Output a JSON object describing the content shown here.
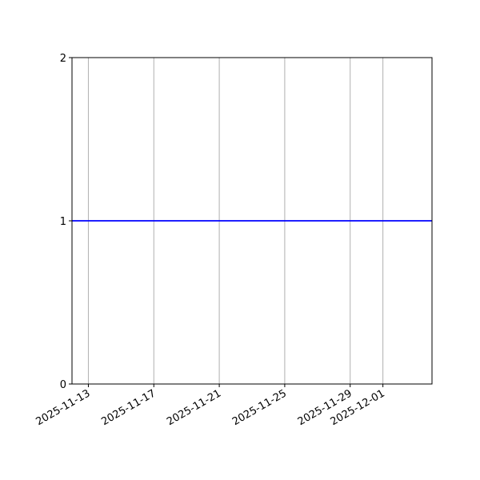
{
  "chart_data": {
    "type": "line",
    "title": "",
    "xlabel": "",
    "ylabel": "",
    "x_type": "date",
    "xlim": [
      "2025-11-12",
      "2025-12-04"
    ],
    "ylim": [
      0,
      2
    ],
    "x_ticks": [
      "2025-11-13",
      "2025-11-17",
      "2025-11-21",
      "2025-11-25",
      "2025-11-29",
      "2025-12-01"
    ],
    "y_ticks": [
      "0",
      "1",
      "2"
    ],
    "grid": "x-only",
    "series": [
      {
        "x": [
          "2025-11-12",
          "2025-12-04"
        ],
        "y": [
          1,
          1
        ],
        "color": "#0000ff"
      }
    ],
    "colors": {
      "line": "#0000ff",
      "grid": "#b0b0b0"
    }
  }
}
